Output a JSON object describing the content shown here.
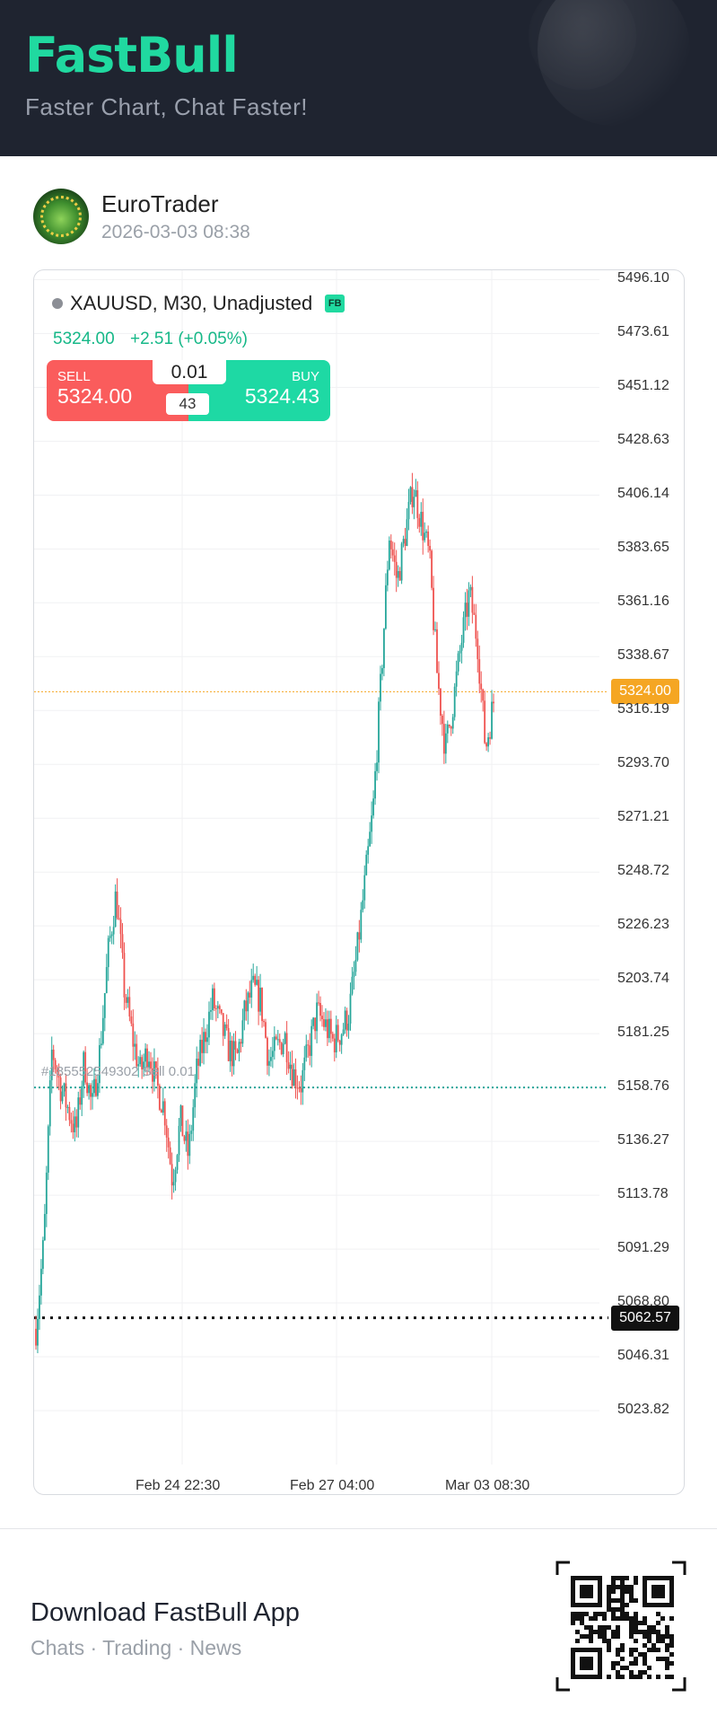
{
  "header": {
    "brand": "FastBull",
    "tagline": "Faster Chart, Chat Faster!"
  },
  "post": {
    "username": "EuroTrader",
    "timestamp": "2026-03-03 08:38"
  },
  "chart": {
    "symbol_title": "XAUUSD, M30, Unadjusted",
    "badge": "FB",
    "last_price": "5324.00",
    "change": "+2.51 (+0.05%)",
    "sell_label": "SELL",
    "sell_price": "5324.00",
    "buy_label": "BUY",
    "buy_price": "5324.43",
    "lot": "0.01",
    "spread": "43",
    "current_price_tag": "5324.00",
    "low_price_tag": "5062.57",
    "order_label": "#185552549302 Sell 0.01",
    "y_ticks": [
      "5496.10",
      "5473.61",
      "5451.12",
      "5428.63",
      "5406.14",
      "5383.65",
      "5361.16",
      "5338.67",
      "5316.19",
      "5293.70",
      "5271.21",
      "5248.72",
      "5226.23",
      "5203.74",
      "5181.25",
      "5158.76",
      "5136.27",
      "5113.78",
      "5091.29",
      "5068.80",
      "5046.31",
      "5023.82"
    ],
    "x_ticks": [
      "Feb 24 22:30",
      "Feb 27 04:00",
      "Mar 03 08:30"
    ],
    "colors": {
      "up": "#26a69a",
      "down": "#ef5350",
      "current": "#f5a623",
      "order_line": "#26a69a"
    }
  },
  "chart_data": {
    "type": "candlestick",
    "title": "XAUUSD, M30, Unadjusted",
    "ylim": [
      5001.33,
      5500.0
    ],
    "x_ticks": [
      "Feb 24 22:30",
      "Feb 27 04:00",
      "Mar 03 08:30"
    ],
    "close_path": [
      5058,
      5095,
      5175,
      5160,
      5150,
      5140,
      5170,
      5150,
      5175,
      5215,
      5240,
      5200,
      5180,
      5165,
      5175,
      5160,
      5150,
      5120,
      5145,
      5130,
      5165,
      5180,
      5195,
      5185,
      5175,
      5170,
      5190,
      5200,
      5195,
      5170,
      5175,
      5180,
      5165,
      5160,
      5175,
      5190,
      5185,
      5178,
      5182,
      5190,
      5215,
      5245,
      5275,
      5330,
      5390,
      5370,
      5390,
      5410,
      5395,
      5380,
      5330,
      5300,
      5320,
      5345,
      5365,
      5345,
      5300,
      5320
    ],
    "current_price": 5324.0,
    "low_marker": 5062.57,
    "order_price": 5158.76
  },
  "footer": {
    "title": "Download FastBull App",
    "subtitle": "Chats · Trading · News"
  }
}
